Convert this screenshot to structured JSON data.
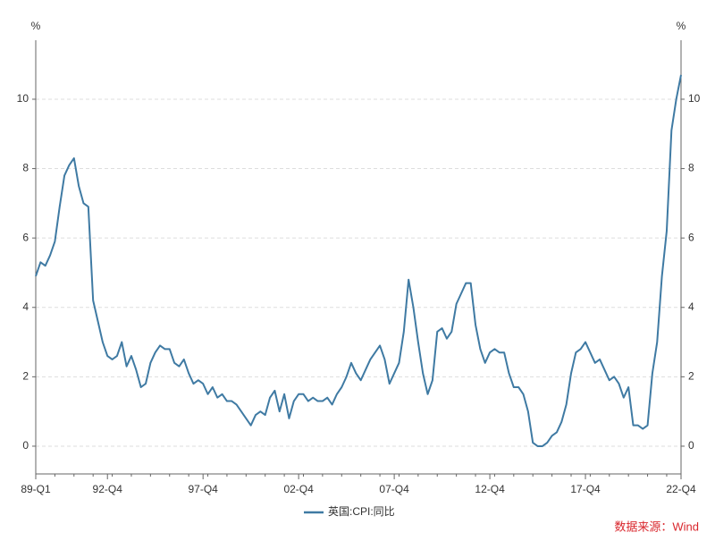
{
  "chart_data": {
    "type": "line",
    "y_label": "%",
    "y2_label": "%",
    "categories": [
      "89-Q1",
      null,
      null,
      null,
      null,
      null,
      null,
      null,
      null,
      null,
      null,
      null,
      null,
      null,
      null,
      "92-Q4",
      null,
      null,
      null,
      null,
      null,
      null,
      null,
      null,
      null,
      null,
      null,
      null,
      null,
      null,
      null,
      null,
      null,
      null,
      null,
      "97-Q4",
      null,
      null,
      null,
      null,
      null,
      null,
      null,
      null,
      null,
      null,
      null,
      null,
      null,
      null,
      null,
      null,
      null,
      null,
      null,
      "02-Q4",
      null,
      null,
      null,
      null,
      null,
      null,
      null,
      null,
      null,
      null,
      null,
      null,
      null,
      null,
      null,
      null,
      null,
      null,
      null,
      "07-Q4",
      null,
      null,
      null,
      null,
      null,
      null,
      null,
      null,
      null,
      null,
      null,
      null,
      null,
      null,
      null,
      null,
      null,
      null,
      null,
      "12-Q4",
      null,
      null,
      null,
      null,
      null,
      null,
      null,
      null,
      null,
      null,
      null,
      null,
      null,
      null,
      null,
      null,
      null,
      null,
      null,
      "17-Q4",
      null,
      null,
      null,
      null,
      null,
      null,
      null,
      null,
      null,
      null,
      null,
      null,
      null,
      null,
      null,
      null,
      null,
      null,
      null,
      "22-Q4"
    ],
    "series": [
      {
        "name": "英国:CPI:同比",
        "color": "#3f7aa3",
        "values": [
          4.9,
          5.3,
          5.2,
          5.5,
          5.9,
          6.9,
          7.8,
          8.1,
          8.3,
          7.5,
          7.0,
          6.9,
          4.2,
          3.6,
          3.0,
          2.6,
          2.5,
          2.6,
          3.0,
          2.3,
          2.6,
          2.2,
          1.7,
          1.8,
          2.4,
          2.7,
          2.9,
          2.8,
          2.8,
          2.4,
          2.3,
          2.5,
          2.1,
          1.8,
          1.9,
          1.8,
          1.5,
          1.7,
          1.4,
          1.5,
          1.3,
          1.3,
          1.2,
          1.0,
          0.8,
          0.6,
          0.9,
          1.0,
          0.9,
          1.4,
          1.6,
          1.0,
          1.5,
          0.8,
          1.3,
          1.5,
          1.5,
          1.3,
          1.4,
          1.3,
          1.3,
          1.4,
          1.2,
          1.5,
          1.7,
          2.0,
          2.4,
          2.1,
          1.9,
          2.2,
          2.5,
          2.7,
          2.9,
          2.5,
          1.8,
          2.1,
          2.4,
          3.3,
          4.8,
          4.0,
          3.0,
          2.1,
          1.5,
          1.9,
          3.3,
          3.4,
          3.1,
          3.3,
          4.1,
          4.4,
          4.7,
          4.7,
          3.5,
          2.8,
          2.4,
          2.7,
          2.8,
          2.7,
          2.7,
          2.1,
          1.7,
          1.7,
          1.5,
          1.0,
          0.1,
          0.0,
          0.0,
          0.1,
          0.3,
          0.4,
          0.7,
          1.2,
          2.1,
          2.7,
          2.8,
          3.0,
          2.7,
          2.4,
          2.5,
          2.2,
          1.9,
          2.0,
          1.8,
          1.4,
          1.7,
          0.6,
          0.6,
          0.5,
          0.6,
          2.1,
          3.0,
          4.9,
          6.2,
          9.1,
          10.0,
          10.7
        ]
      }
    ],
    "ylim": [
      -0.8,
      11.7
    ],
    "yticks": [
      0,
      2,
      4,
      6,
      8,
      10
    ],
    "grid": true,
    "source": "数据来源：Wind"
  }
}
